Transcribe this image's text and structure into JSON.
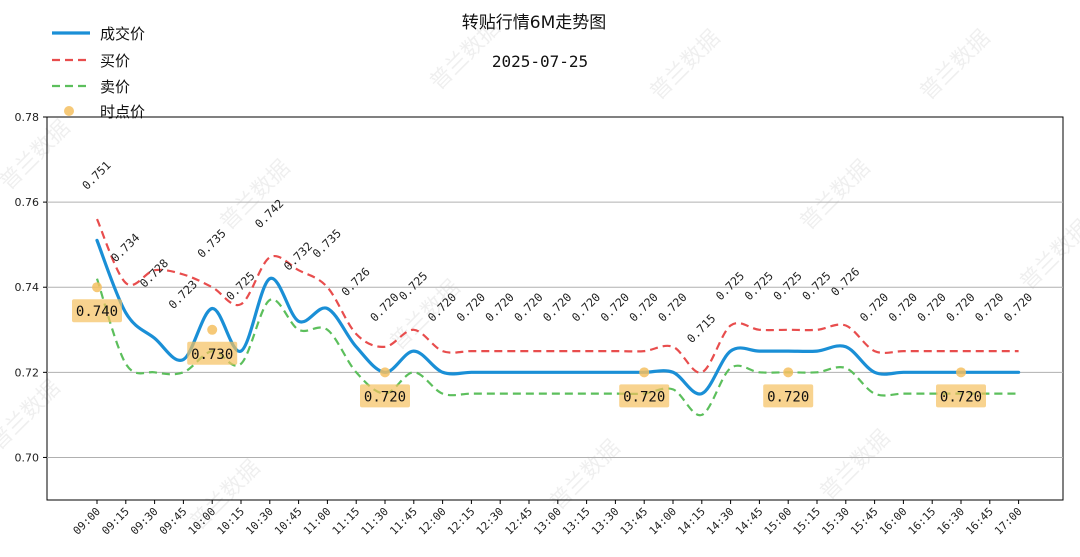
{
  "chart_data": {
    "type": "line",
    "title": "转贴行情6M走势图",
    "subtitle": "2025-07-25",
    "watermark": "普兰数据",
    "ylim": [
      0.69,
      0.78
    ],
    "yticks": [
      "0.70",
      "0.72",
      "0.74",
      "0.76",
      "0.78"
    ],
    "ytick_values": [
      0.7,
      0.72,
      0.74,
      0.76,
      0.78
    ],
    "grid": "horizontal",
    "legend_position": "top-left",
    "categories": [
      "09:00",
      "09:15",
      "09:30",
      "09:45",
      "10:00",
      "10:15",
      "10:30",
      "10:45",
      "11:00",
      "11:15",
      "11:30",
      "11:45",
      "12:00",
      "12:15",
      "12:30",
      "12:45",
      "13:00",
      "13:15",
      "13:30",
      "13:45",
      "14:00",
      "14:15",
      "14:30",
      "14:45",
      "15:00",
      "15:15",
      "15:30",
      "15:45",
      "16:00",
      "16:15",
      "16:30",
      "16:45",
      "17:00"
    ],
    "series": [
      {
        "name": "成交价",
        "color": "#1a8fd6",
        "style": "solid",
        "values": [
          0.751,
          0.734,
          0.728,
          0.723,
          0.735,
          0.725,
          0.742,
          0.732,
          0.735,
          0.726,
          0.72,
          0.725,
          0.72,
          0.72,
          0.72,
          0.72,
          0.72,
          0.72,
          0.72,
          0.72,
          0.72,
          0.715,
          0.725,
          0.725,
          0.725,
          0.725,
          0.726,
          0.72,
          0.72,
          0.72,
          0.72,
          0.72,
          0.72
        ]
      },
      {
        "name": "买价",
        "color": "#e84d4d",
        "style": "dashed",
        "values": [
          0.756,
          0.741,
          0.744,
          0.743,
          0.74,
          0.736,
          0.747,
          0.744,
          0.74,
          0.729,
          0.726,
          0.73,
          0.725,
          0.725,
          0.725,
          0.725,
          0.725,
          0.725,
          0.725,
          0.725,
          0.726,
          0.72,
          0.731,
          0.73,
          0.73,
          0.73,
          0.731,
          0.725,
          0.725,
          0.725,
          0.725,
          0.725,
          0.725
        ]
      },
      {
        "name": "卖价",
        "color": "#5cbf5c",
        "style": "dashed",
        "values": [
          0.742,
          0.722,
          0.72,
          0.72,
          0.725,
          0.722,
          0.737,
          0.73,
          0.73,
          0.72,
          0.715,
          0.72,
          0.715,
          0.715,
          0.715,
          0.715,
          0.715,
          0.715,
          0.715,
          0.715,
          0.716,
          0.71,
          0.721,
          0.72,
          0.72,
          0.72,
          0.721,
          0.715,
          0.715,
          0.715,
          0.715,
          0.715,
          0.715
        ]
      }
    ],
    "data_labels": [
      "0.751",
      "0.734",
      "0.728",
      "0.723",
      "0.735",
      "0.725",
      "0.742",
      "0.732",
      "0.735",
      "0.726",
      "0.720",
      "0.725",
      "0.720",
      "0.720",
      "0.720",
      "0.720",
      "0.720",
      "0.720",
      "0.720",
      "0.720",
      "0.720",
      "0.715",
      "0.725",
      "0.725",
      "0.725",
      "0.725",
      "0.726",
      "0.720",
      "0.720",
      "0.720",
      "0.720",
      "0.720",
      "0.720"
    ],
    "point_series": {
      "name": "时点价",
      "color": "#f5c060",
      "points": [
        {
          "x": "09:00",
          "y": 0.74,
          "label": "0.740"
        },
        {
          "x": "10:00",
          "y": 0.73,
          "label": "0.730"
        },
        {
          "x": "11:30",
          "y": 0.72,
          "label": "0.720"
        },
        {
          "x": "13:45",
          "y": 0.72,
          "label": "0.720"
        },
        {
          "x": "15:00",
          "y": 0.72,
          "label": "0.720"
        },
        {
          "x": "16:30",
          "y": 0.72,
          "label": "0.720"
        }
      ]
    }
  }
}
